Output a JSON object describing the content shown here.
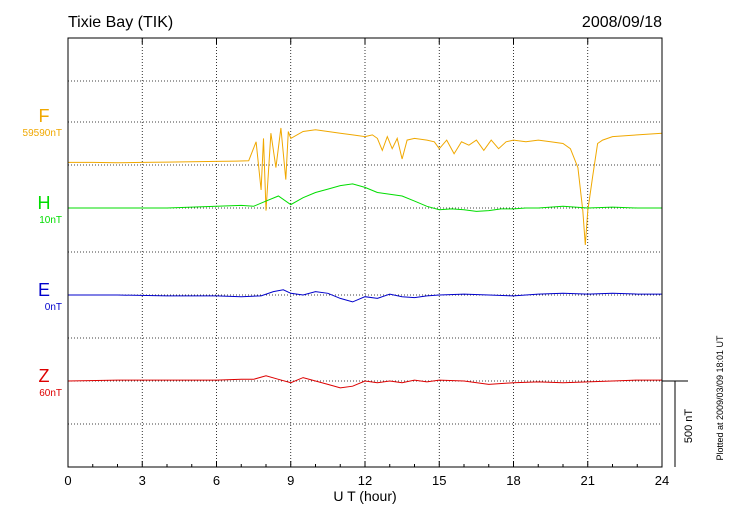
{
  "chart_data": {
    "type": "line",
    "title": "Tixie Bay (TIK)",
    "date": "2008/09/18",
    "xlabel": "U T (hour)",
    "xlim": [
      0,
      24
    ],
    "xticks": [
      0,
      3,
      6,
      9,
      12,
      15,
      18,
      21,
      24
    ],
    "grid": true,
    "scale_bar_label": "500 nT",
    "scale_bar_nT": 500,
    "footer": "Plotted at 2009/03/09 18:01 UT",
    "series": [
      {
        "name": "F",
        "baseline_label": "59590nT",
        "baseline_nT": 59590,
        "color": "#f0a800",
        "points": [
          [
            0,
            -20
          ],
          [
            1,
            -20
          ],
          [
            2,
            -22
          ],
          [
            3,
            -20
          ],
          [
            4,
            -18
          ],
          [
            5,
            -16
          ],
          [
            6,
            -14
          ],
          [
            6.8,
            -12
          ],
          [
            7.3,
            -10
          ],
          [
            7.6,
            100
          ],
          [
            7.8,
            -180
          ],
          [
            7.9,
            120
          ],
          [
            8.0,
            -300
          ],
          [
            8.2,
            150
          ],
          [
            8.4,
            -50
          ],
          [
            8.6,
            180
          ],
          [
            8.8,
            -120
          ],
          [
            8.9,
            160
          ],
          [
            9.0,
            120
          ],
          [
            9.5,
            160
          ],
          [
            10,
            170
          ],
          [
            10.5,
            160
          ],
          [
            11,
            150
          ],
          [
            11.5,
            140
          ],
          [
            12,
            130
          ],
          [
            12.3,
            140
          ],
          [
            12.5,
            120
          ],
          [
            12.7,
            50
          ],
          [
            12.9,
            130
          ],
          [
            13.1,
            60
          ],
          [
            13.3,
            120
          ],
          [
            13.5,
            0
          ],
          [
            13.7,
            110
          ],
          [
            14,
            120
          ],
          [
            14.5,
            110
          ],
          [
            14.8,
            100
          ],
          [
            15,
            60
          ],
          [
            15.3,
            110
          ],
          [
            15.6,
            30
          ],
          [
            15.9,
            100
          ],
          [
            16.2,
            80
          ],
          [
            16.5,
            110
          ],
          [
            16.8,
            50
          ],
          [
            17.1,
            110
          ],
          [
            17.4,
            60
          ],
          [
            17.7,
            100
          ],
          [
            18,
            110
          ],
          [
            18.5,
            100
          ],
          [
            19,
            110
          ],
          [
            19.5,
            100
          ],
          [
            20,
            90
          ],
          [
            20.3,
            60
          ],
          [
            20.6,
            -50
          ],
          [
            20.8,
            -300
          ],
          [
            20.9,
            -500
          ],
          [
            21.0,
            -300
          ],
          [
            21.2,
            -100
          ],
          [
            21.4,
            90
          ],
          [
            21.6,
            110
          ],
          [
            22,
            130
          ],
          [
            23,
            140
          ],
          [
            24,
            150
          ]
        ]
      },
      {
        "name": "H",
        "baseline_label": "10nT",
        "baseline_nT": 10,
        "color": "#00dd00",
        "points": [
          [
            0,
            0
          ],
          [
            2,
            0
          ],
          [
            4,
            0
          ],
          [
            6,
            10
          ],
          [
            7,
            15
          ],
          [
            7.5,
            10
          ],
          [
            8,
            40
          ],
          [
            8.5,
            70
          ],
          [
            9,
            20
          ],
          [
            9.5,
            60
          ],
          [
            10,
            90
          ],
          [
            10.5,
            110
          ],
          [
            11,
            130
          ],
          [
            11.5,
            140
          ],
          [
            12,
            120
          ],
          [
            12.5,
            90
          ],
          [
            13,
            80
          ],
          [
            13.5,
            70
          ],
          [
            14,
            40
          ],
          [
            14.5,
            10
          ],
          [
            15,
            -10
          ],
          [
            15.5,
            -5
          ],
          [
            16,
            -10
          ],
          [
            16.5,
            -20
          ],
          [
            17,
            -15
          ],
          [
            17.5,
            -5
          ],
          [
            18,
            -5
          ],
          [
            18.5,
            0
          ],
          [
            19,
            0
          ],
          [
            20,
            10
          ],
          [
            21,
            0
          ],
          [
            22,
            5
          ],
          [
            23,
            0
          ],
          [
            24,
            0
          ]
        ]
      },
      {
        "name": "E",
        "baseline_label": "0nT",
        "baseline_nT": 0,
        "color": "#0000cc",
        "points": [
          [
            0,
            0
          ],
          [
            2,
            0
          ],
          [
            4,
            -5
          ],
          [
            6,
            -5
          ],
          [
            7,
            -10
          ],
          [
            7.8,
            -5
          ],
          [
            8.3,
            20
          ],
          [
            8.7,
            30
          ],
          [
            9,
            10
          ],
          [
            9.5,
            0
          ],
          [
            10,
            20
          ],
          [
            10.5,
            10
          ],
          [
            11,
            -20
          ],
          [
            11.5,
            -40
          ],
          [
            12,
            -10
          ],
          [
            12.5,
            -20
          ],
          [
            13,
            5
          ],
          [
            13.5,
            -10
          ],
          [
            14,
            -15
          ],
          [
            14.5,
            -5
          ],
          [
            15,
            0
          ],
          [
            16,
            5
          ],
          [
            17,
            0
          ],
          [
            18,
            -5
          ],
          [
            19,
            5
          ],
          [
            20,
            10
          ],
          [
            21,
            5
          ],
          [
            22,
            10
          ],
          [
            23,
            5
          ],
          [
            24,
            5
          ]
        ]
      },
      {
        "name": "Z",
        "baseline_label": "60nT",
        "baseline_nT": 60,
        "color": "#dd0000",
        "points": [
          [
            0,
            0
          ],
          [
            2,
            5
          ],
          [
            4,
            5
          ],
          [
            6,
            5
          ],
          [
            7,
            10
          ],
          [
            7.5,
            10
          ],
          [
            8,
            30
          ],
          [
            8.5,
            10
          ],
          [
            9,
            -10
          ],
          [
            9.5,
            20
          ],
          [
            10,
            0
          ],
          [
            10.5,
            -20
          ],
          [
            11,
            -40
          ],
          [
            11.5,
            -30
          ],
          [
            12,
            0
          ],
          [
            12.5,
            -10
          ],
          [
            13,
            0
          ],
          [
            13.5,
            -10
          ],
          [
            14,
            5
          ],
          [
            14.5,
            -5
          ],
          [
            15,
            5
          ],
          [
            16,
            0
          ],
          [
            17,
            -20
          ],
          [
            18,
            -10
          ],
          [
            19,
            -5
          ],
          [
            20,
            -10
          ],
          [
            21,
            -5
          ],
          [
            22,
            0
          ],
          [
            23,
            5
          ],
          [
            24,
            5
          ]
        ]
      }
    ]
  }
}
